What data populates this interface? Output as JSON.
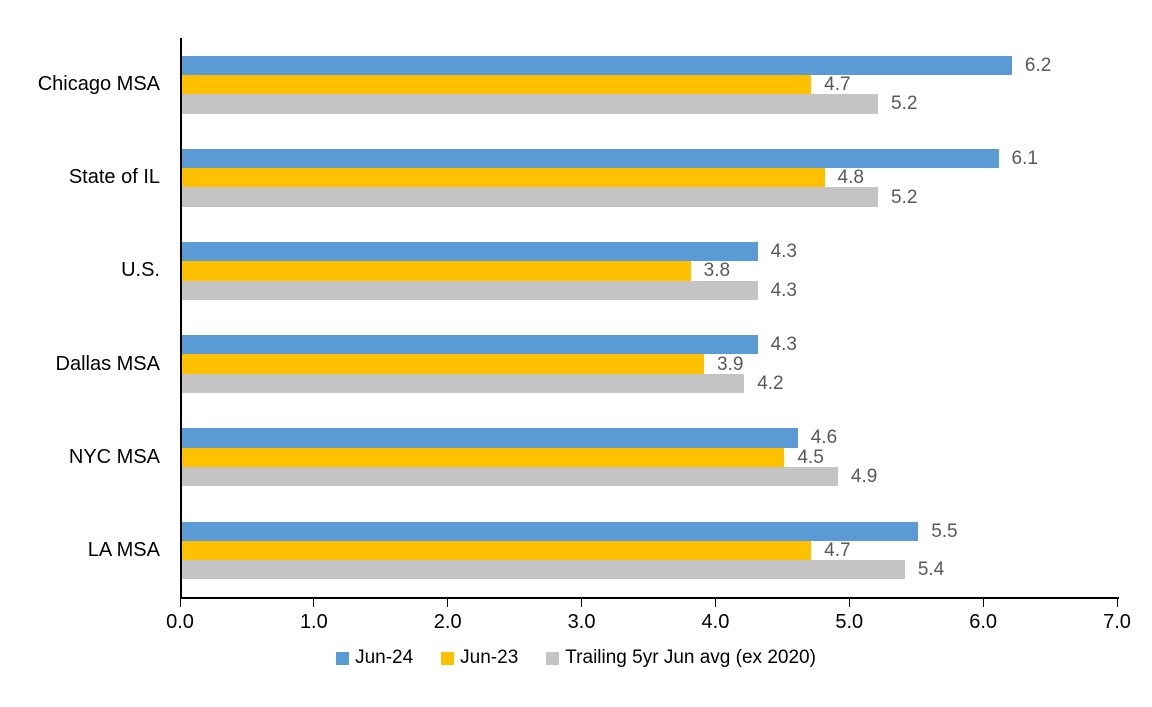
{
  "chart_data": {
    "type": "bar",
    "orientation": "horizontal",
    "title": "",
    "categories": [
      "Chicago MSA",
      "State of IL",
      "U.S.",
      "Dallas MSA",
      "NYC MSA",
      "LA MSA"
    ],
    "series": [
      {
        "name": "Jun-24",
        "color": "#5B9BD5",
        "values": [
          6.2,
          6.1,
          4.3,
          4.3,
          4.6,
          5.5
        ]
      },
      {
        "name": "Jun-23",
        "color": "#FFC000",
        "values": [
          4.7,
          4.8,
          3.8,
          3.9,
          4.5,
          4.7
        ]
      },
      {
        "name": "Trailing 5yr Jun avg (ex 2020)",
        "color": "#C4C4C4",
        "values": [
          5.2,
          5.2,
          4.3,
          4.2,
          4.9,
          5.4
        ]
      }
    ],
    "xlim": [
      0,
      7
    ],
    "x_ticks": [
      "0.0",
      "1.0",
      "2.0",
      "3.0",
      "4.0",
      "5.0",
      "6.0",
      "7.0"
    ],
    "value_labels_shown": true,
    "value_label_decimals": 1,
    "legend_position": "bottom-center",
    "grid": false,
    "colors": {
      "background": "#FFFFFF",
      "axis_line": "#000000",
      "tick_label_text": "#000000",
      "category_label_text": "#000000",
      "data_label_text": "#595959",
      "legend_text": "#000000"
    }
  }
}
